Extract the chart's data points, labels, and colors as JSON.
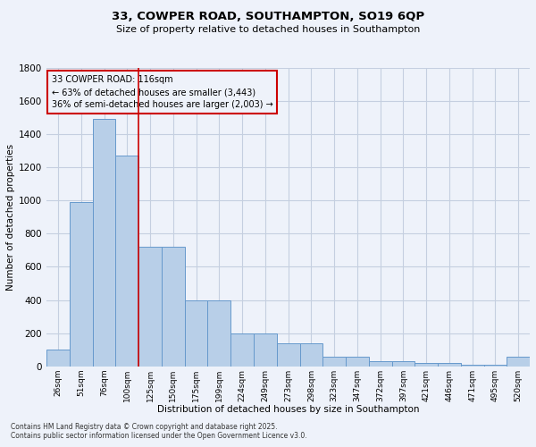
{
  "title_line1": "33, COWPER ROAD, SOUTHAMPTON, SO19 6QP",
  "title_line2": "Size of property relative to detached houses in Southampton",
  "xlabel": "Distribution of detached houses by size in Southampton",
  "ylabel": "Number of detached properties",
  "categories": [
    "26sqm",
    "51sqm",
    "76sqm",
    "100sqm",
    "125sqm",
    "150sqm",
    "175sqm",
    "199sqm",
    "224sqm",
    "249sqm",
    "273sqm",
    "298sqm",
    "323sqm",
    "347sqm",
    "372sqm",
    "397sqm",
    "421sqm",
    "446sqm",
    "471sqm",
    "495sqm",
    "520sqm"
  ],
  "values": [
    100,
    990,
    1490,
    1270,
    720,
    720,
    400,
    400,
    200,
    200,
    140,
    140,
    60,
    60,
    30,
    30,
    20,
    20,
    10,
    10,
    60
  ],
  "bar_color": "#b8cfe8",
  "bar_edge_color": "#6699cc",
  "vline_x": 3.5,
  "vline_color": "#cc0000",
  "annotation_text": "33 COWPER ROAD: 116sqm\n← 63% of detached houses are smaller (3,443)\n36% of semi-detached houses are larger (2,003) →",
  "annotation_box_color": "#cc0000",
  "ylim": [
    0,
    1800
  ],
  "yticks": [
    0,
    200,
    400,
    600,
    800,
    1000,
    1200,
    1400,
    1600,
    1800
  ],
  "footer_line1": "Contains HM Land Registry data © Crown copyright and database right 2025.",
  "footer_line2": "Contains public sector information licensed under the Open Government Licence v3.0.",
  "bg_color": "#eef2fa",
  "grid_color": "#c5cfe0"
}
